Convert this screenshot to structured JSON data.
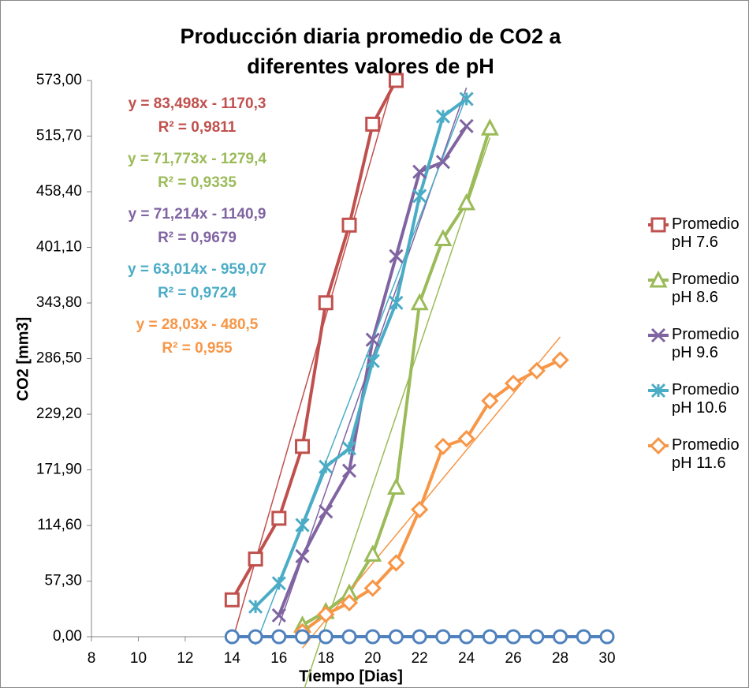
{
  "chart_data": {
    "type": "line",
    "title": "Producción diaria promedio de CO2 a diferentes valores de pH",
    "x_label": "Tiempo [Dias]",
    "y_label": "CO2 [mm3]",
    "xlim": [
      8,
      30
    ],
    "xticks": [
      8,
      10,
      12,
      14,
      16,
      18,
      20,
      22,
      24,
      26,
      28,
      30
    ],
    "ylim": [
      0,
      573
    ],
    "yticks": [
      {
        "value": 0,
        "label": "0,00"
      },
      {
        "value": 57.3,
        "label": "57,30"
      },
      {
        "value": 114.6,
        "label": "114,60"
      },
      {
        "value": 171.9,
        "label": "171,90"
      },
      {
        "value": 229.2,
        "label": "229,20"
      },
      {
        "value": 286.5,
        "label": "286,50"
      },
      {
        "value": 343.8,
        "label": "343,80"
      },
      {
        "value": 401.1,
        "label": "401,10"
      },
      {
        "value": 458.4,
        "label": "458,40"
      },
      {
        "value": 515.7,
        "label": "515,70"
      },
      {
        "value": 573,
        "label": "573,00"
      }
    ],
    "legend": "right",
    "series": [
      {
        "name": "Promedio pH 7.6",
        "color": "#c0504d",
        "marker": "square",
        "x": [
          14,
          15,
          16,
          17,
          18,
          19,
          20,
          21
        ],
        "values": [
          38,
          80,
          122,
          196,
          344,
          424,
          528,
          573
        ],
        "equation": "y = 83,498x - 1170,3",
        "r2": "R² = 0,9811"
      },
      {
        "name": "Promedio pH 8.6",
        "color": "#9bbb59",
        "marker": "triangle",
        "x": [
          17,
          18,
          19,
          20,
          21,
          22,
          23,
          24,
          25
        ],
        "values": [
          12,
          26,
          45,
          85,
          154,
          344,
          410,
          447,
          524
        ],
        "equation": "y = 71,773x - 1279,4",
        "r2": "R² = 0,9335"
      },
      {
        "name": "Promedio pH 9.6",
        "color": "#8064a2",
        "marker": "x",
        "x": [
          16,
          17,
          18,
          19,
          20,
          21,
          22,
          23,
          24
        ],
        "values": [
          22,
          83,
          129,
          171,
          306,
          392,
          479,
          489,
          526
        ],
        "equation": "y = 71,214x - 1140,9",
        "r2": "R² = 0,9679"
      },
      {
        "name": "Promedio pH 10.6",
        "color": "#4bacc6",
        "marker": "star",
        "x": [
          15,
          16,
          17,
          18,
          19,
          20,
          21,
          22,
          23,
          24
        ],
        "values": [
          31,
          55,
          115,
          175,
          194,
          284,
          344,
          454,
          536,
          554
        ],
        "equation": "y = 63,014x - 959,07",
        "r2": "R² = 0,9724"
      },
      {
        "name": "Promedio pH 11.6",
        "color": "#f79646",
        "marker": "diamond",
        "x": [
          17,
          18,
          19,
          20,
          21,
          22,
          23,
          24,
          25,
          26,
          27,
          28
        ],
        "values": [
          5,
          23,
          35,
          50,
          76,
          131,
          196,
          204,
          243,
          261,
          274,
          285
        ],
        "equation": "y = 28,03x - 480,5",
        "r2": "R² = 0,955"
      },
      {
        "color": "#4f81bd",
        "marker": "circle",
        "x": [
          14,
          15,
          16,
          17,
          18,
          19,
          20,
          21,
          22,
          23,
          24,
          25,
          26,
          27,
          28,
          29,
          30
        ],
        "values": [
          0,
          0,
          0,
          0,
          0,
          0,
          0,
          0,
          0,
          0,
          0,
          0,
          0,
          0,
          0,
          0,
          0
        ]
      }
    ]
  }
}
